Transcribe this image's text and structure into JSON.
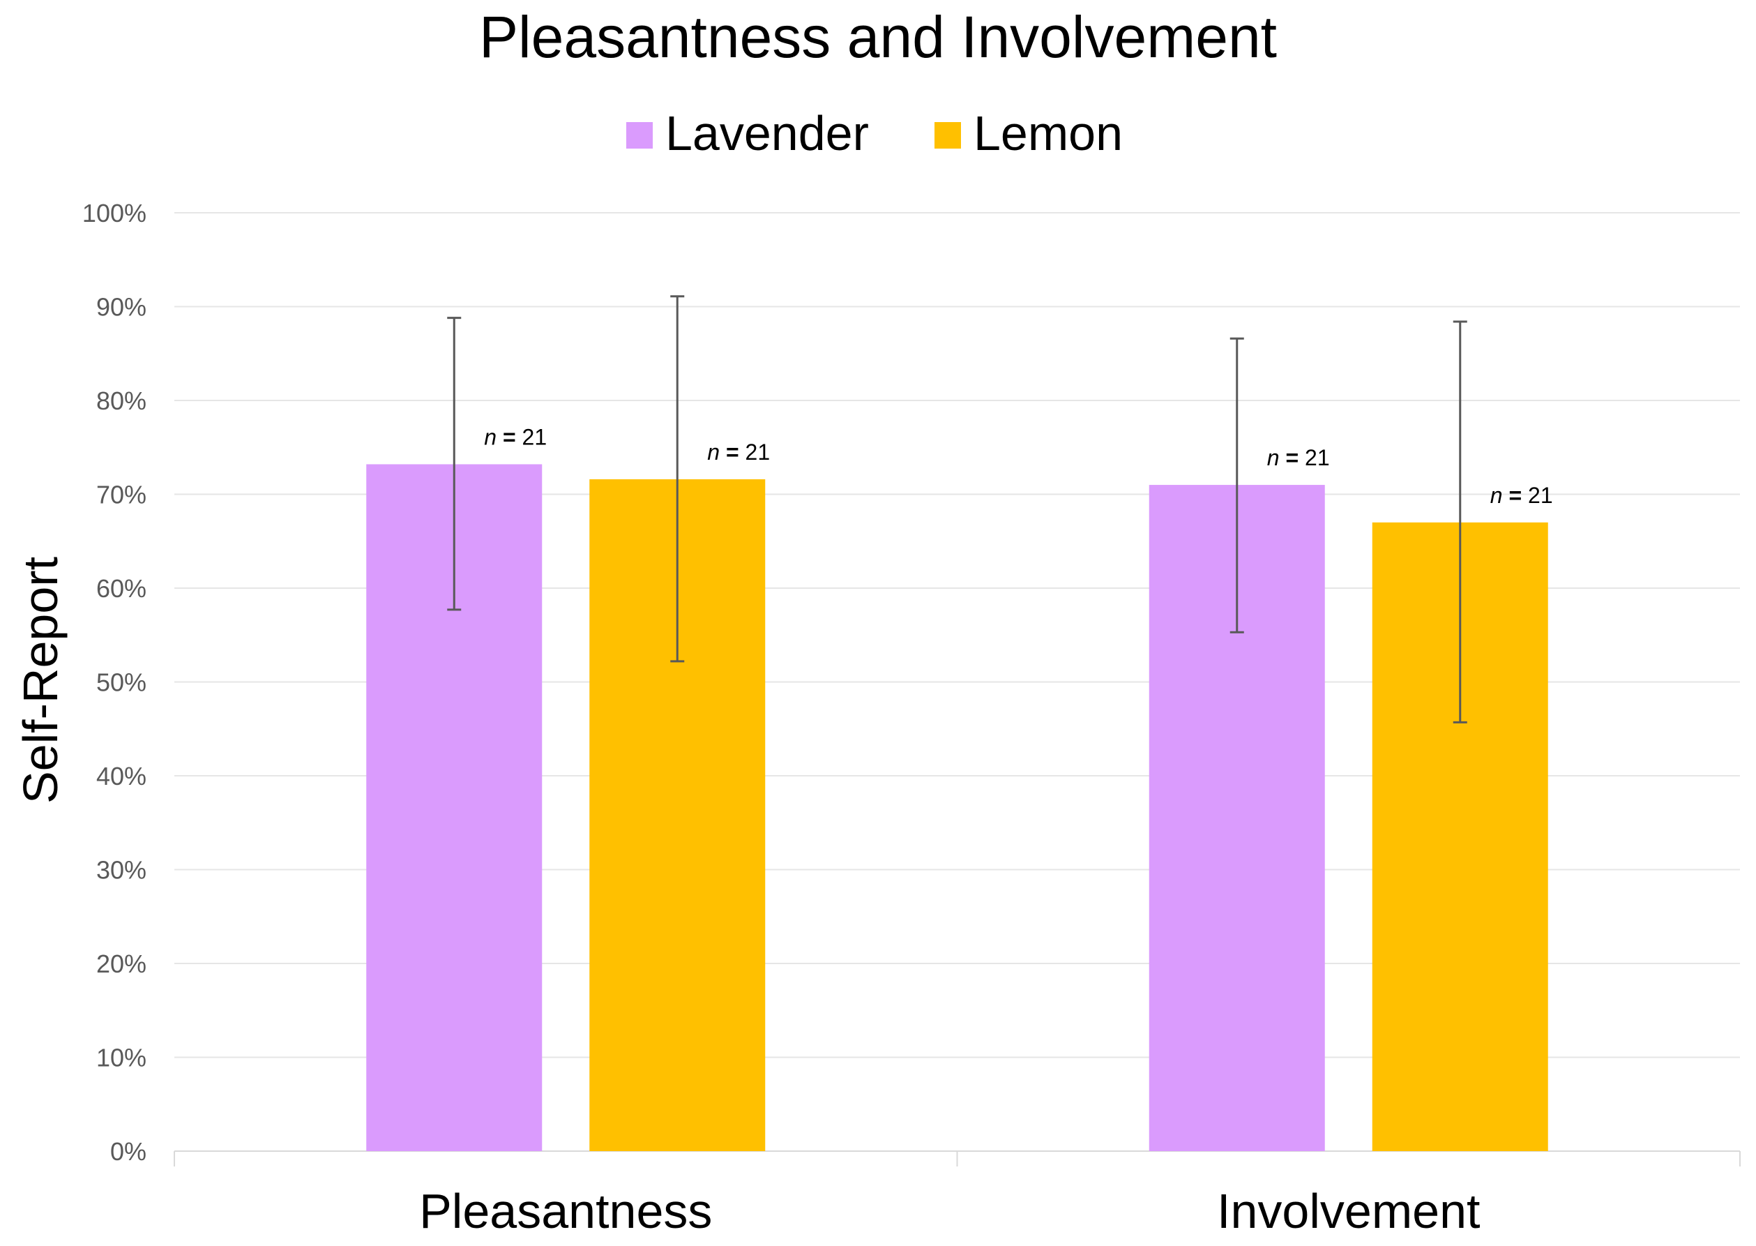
{
  "chart_data": {
    "type": "bar",
    "title": "Pleasantness and Involvement",
    "xlabel": "",
    "ylabel": "Self-Report",
    "ylim": [
      0,
      100
    ],
    "yticks": [
      0,
      10,
      20,
      30,
      40,
      50,
      60,
      70,
      80,
      90,
      100
    ],
    "ytick_suffix": "%",
    "grid": true,
    "legend_position": "top-center",
    "categories": [
      "Pleasantness",
      "Involvement"
    ],
    "series": [
      {
        "name": "Lavender",
        "color": "#DA9BFD",
        "values": [
          73.2,
          71.0
        ],
        "err_low": [
          57.7,
          55.3
        ],
        "err_high": [
          88.8,
          86.6
        ],
        "n_labels": [
          "21",
          "21"
        ]
      },
      {
        "name": "Lemon",
        "color": "#FFC000",
        "values": [
          71.6,
          67.0
        ],
        "err_low": [
          52.2,
          45.7
        ],
        "err_high": [
          91.1,
          88.4
        ],
        "n_labels": [
          "21",
          "21"
        ]
      }
    ],
    "annotation_prefix": "n",
    "annotation_sep": "="
  }
}
